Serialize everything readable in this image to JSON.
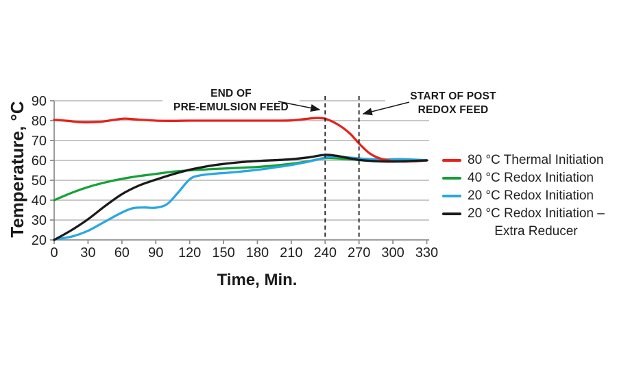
{
  "chart_data": {
    "type": "line",
    "title": "",
    "xlabel": "Time, Min.",
    "ylabel": "Temperature, °C",
    "xlim": [
      0,
      330
    ],
    "ylim": [
      20,
      90
    ],
    "x_ticks": [
      0,
      30,
      60,
      90,
      120,
      150,
      180,
      210,
      240,
      270,
      300,
      330
    ],
    "y_ticks": [
      20,
      30,
      40,
      50,
      60,
      70,
      80,
      90
    ],
    "grid": "horizontal-only",
    "legend_position": "right-center",
    "series": [
      {
        "name": "80 °C Thermal Initiation",
        "legend_lines": [
          "80 °C Thermal Initiation"
        ],
        "color": "#e5231b",
        "points": [
          [
            0,
            80.4
          ],
          [
            12,
            79.9
          ],
          [
            25,
            79.2
          ],
          [
            40,
            79.4
          ],
          [
            52,
            80.3
          ],
          [
            62,
            81.0
          ],
          [
            75,
            80.5
          ],
          [
            90,
            80.0
          ],
          [
            105,
            79.9
          ],
          [
            120,
            80.0
          ],
          [
            150,
            80.0
          ],
          [
            180,
            80.0
          ],
          [
            195,
            80.0
          ],
          [
            210,
            80.1
          ],
          [
            222,
            80.8
          ],
          [
            232,
            81.3
          ],
          [
            241,
            80.8
          ],
          [
            252,
            77.8
          ],
          [
            262,
            73.5
          ],
          [
            270,
            68.5
          ],
          [
            280,
            63.3
          ],
          [
            290,
            60.7
          ],
          [
            300,
            59.7
          ],
          [
            310,
            59.4
          ],
          [
            320,
            59.6
          ],
          [
            330,
            60.0
          ]
        ]
      },
      {
        "name": "40 °C Redox Initiation",
        "legend_lines": [
          "40 °C Redox Initiation"
        ],
        "color": "#16a038",
        "points": [
          [
            0,
            40.0
          ],
          [
            15,
            43.6
          ],
          [
            30,
            46.6
          ],
          [
            45,
            48.9
          ],
          [
            60,
            50.7
          ],
          [
            75,
            52.1
          ],
          [
            90,
            53.2
          ],
          [
            105,
            54.3
          ],
          [
            120,
            55.0
          ],
          [
            135,
            55.5
          ],
          [
            150,
            55.9
          ],
          [
            165,
            56.3
          ],
          [
            180,
            56.7
          ],
          [
            195,
            57.4
          ],
          [
            210,
            58.3
          ],
          [
            225,
            59.5
          ],
          [
            238,
            61.0
          ],
          [
            248,
            61.1
          ],
          [
            258,
            60.7
          ],
          [
            270,
            60.2
          ],
          [
            285,
            59.9
          ],
          [
            300,
            59.8
          ],
          [
            315,
            59.9
          ],
          [
            330,
            60.0
          ]
        ]
      },
      {
        "name": "20 °C Redox Initiation",
        "legend_lines": [
          "20 °C Redox Initiation"
        ],
        "color": "#2aa7e0",
        "points": [
          [
            0,
            20.3
          ],
          [
            15,
            21.6
          ],
          [
            30,
            24.6
          ],
          [
            45,
            29.2
          ],
          [
            60,
            33.8
          ],
          [
            70,
            36.0
          ],
          [
            80,
            36.3
          ],
          [
            90,
            36.2
          ],
          [
            100,
            38.0
          ],
          [
            110,
            44.0
          ],
          [
            120,
            50.5
          ],
          [
            128,
            52.3
          ],
          [
            140,
            53.2
          ],
          [
            154,
            53.8
          ],
          [
            168,
            54.5
          ],
          [
            182,
            55.4
          ],
          [
            196,
            56.5
          ],
          [
            210,
            57.7
          ],
          [
            224,
            59.2
          ],
          [
            240,
            61.4
          ],
          [
            250,
            62.0
          ],
          [
            262,
            61.4
          ],
          [
            275,
            60.8
          ],
          [
            290,
            60.5
          ],
          [
            305,
            60.7
          ],
          [
            318,
            60.4
          ],
          [
            330,
            60.1
          ]
        ]
      },
      {
        "name": "20 °C Redox Initiation – Extra Reducer",
        "legend_lines": [
          "20 °C Redox Initiation –",
          "Extra Reducer"
        ],
        "color": "#1a1a1a",
        "points": [
          [
            0,
            20.0
          ],
          [
            15,
            24.8
          ],
          [
            30,
            30.4
          ],
          [
            45,
            37.0
          ],
          [
            60,
            43.0
          ],
          [
            75,
            47.3
          ],
          [
            90,
            50.3
          ],
          [
            105,
            53.0
          ],
          [
            120,
            55.3
          ],
          [
            135,
            57.0
          ],
          [
            150,
            58.2
          ],
          [
            165,
            59.1
          ],
          [
            180,
            59.7
          ],
          [
            195,
            60.1
          ],
          [
            210,
            60.6
          ],
          [
            225,
            61.5
          ],
          [
            240,
            62.8
          ],
          [
            250,
            62.3
          ],
          [
            262,
            61.0
          ],
          [
            272,
            60.1
          ],
          [
            285,
            59.6
          ],
          [
            300,
            59.4
          ],
          [
            315,
            59.7
          ],
          [
            330,
            60.0
          ]
        ]
      }
    ],
    "annotations": [
      {
        "line1": "END OF",
        "line2": "PRE-EMULSION FEED",
        "marker_x": 240
      },
      {
        "line1": "START OF POST",
        "line2": "REDOX FEED",
        "marker_x": 270
      }
    ]
  },
  "colors": {
    "background": "#ffffff",
    "gridline": "#b5b5b5",
    "axis": "#8f8f8f",
    "tick_text": "#1f1f1f",
    "annotation_text": "#1a1a1a"
  }
}
